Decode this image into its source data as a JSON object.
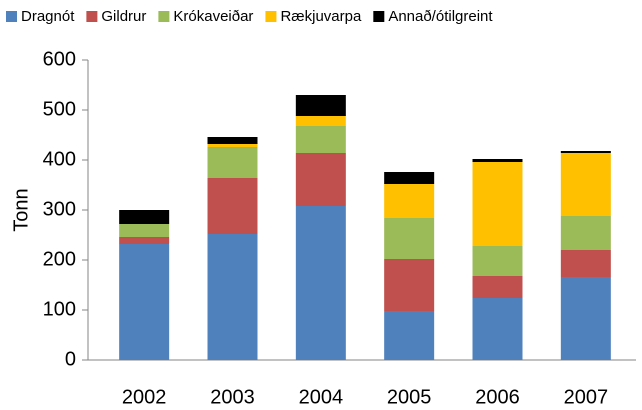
{
  "chart_data": {
    "type": "stacked_bar",
    "y_label": "Tonn",
    "categories": [
      "2002",
      "2003",
      "2004",
      "2005",
      "2006",
      "2007"
    ],
    "series": [
      {
        "name": "Dragnót",
        "color": "#4f81bd",
        "values": [
          232,
          252,
          308,
          98,
          124,
          166
        ]
      },
      {
        "name": "Gildrur",
        "color": "#c0504d",
        "values": [
          14,
          112,
          106,
          104,
          44,
          54
        ]
      },
      {
        "name": "Krókaveiðar",
        "color": "#9bbb59",
        "values": [
          26,
          62,
          54,
          82,
          60,
          68
        ]
      },
      {
        "name": "Rækjuvarpa",
        "color": "#ffc000",
        "values": [
          0,
          6,
          20,
          68,
          168,
          126
        ]
      },
      {
        "name": "Annað/ótilgreint",
        "color": "#000000",
        "values": [
          28,
          14,
          42,
          24,
          6,
          4
        ]
      }
    ],
    "ylim": [
      0,
      600
    ],
    "yticks": [
      0,
      100,
      200,
      300,
      400,
      500,
      600
    ],
    "grid": false,
    "legend": "top"
  }
}
